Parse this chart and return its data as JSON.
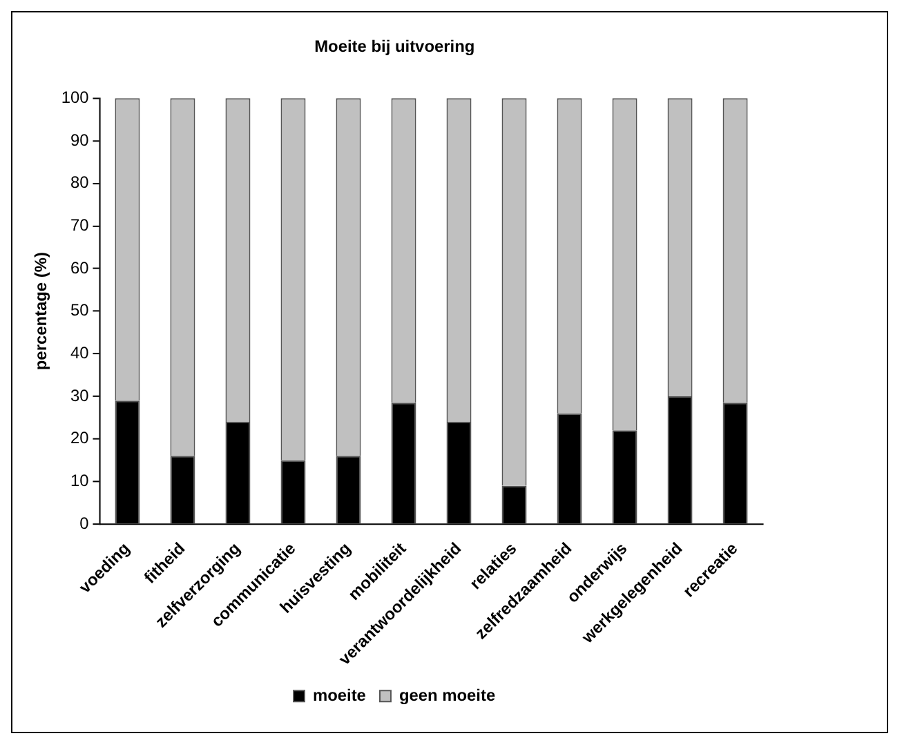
{
  "chart_data": {
    "type": "bar",
    "title": "Moeite bij uitvoering",
    "ylabel": "percentage (%)",
    "stacked": true,
    "categories": [
      "voeding",
      "fitheid",
      "zelfverzorging",
      "communicatie",
      "huisvesting",
      "mobiliteit",
      "verantwoordelijkheid",
      "relaties",
      "zelfredzaamheid",
      "onderwijs",
      "werkgelegenheid",
      "recreatie"
    ],
    "series": [
      {
        "name": "moeite",
        "color": "#000000",
        "values": [
          29,
          16,
          24,
          15,
          16,
          28.5,
          24,
          9,
          26,
          22,
          30,
          28.5
        ]
      },
      {
        "name": "geen moeite",
        "color": "#c0c0c0",
        "values": [
          71,
          84,
          76,
          85,
          84,
          71.5,
          76,
          91,
          74,
          78,
          70,
          71.5
        ]
      }
    ],
    "ylim": [
      0,
      100
    ],
    "yticks": [
      0,
      10,
      20,
      30,
      40,
      50,
      60,
      70,
      80,
      90,
      100
    ],
    "grid": false,
    "legend": "bottom"
  }
}
